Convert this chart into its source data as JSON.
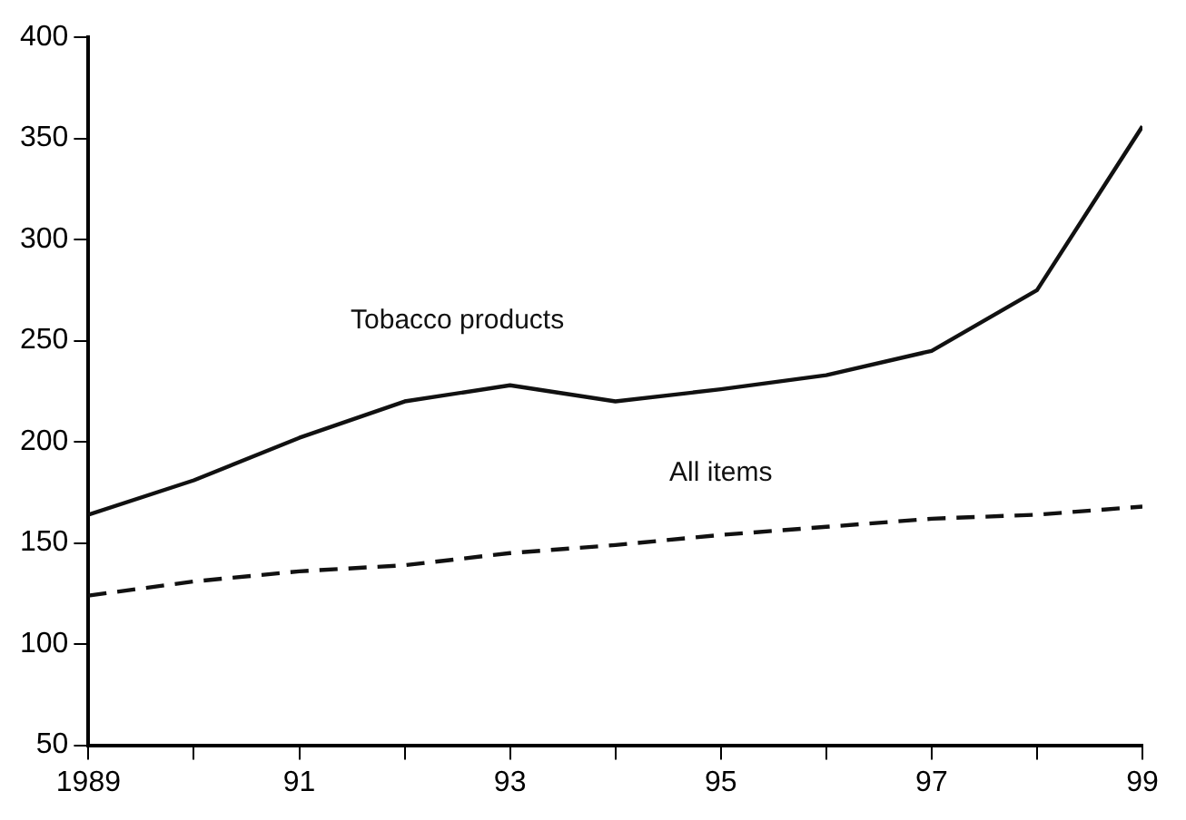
{
  "chart_data": {
    "type": "line",
    "x": [
      1989,
      1990,
      1991,
      1992,
      1993,
      1994,
      1995,
      1996,
      1997,
      1998,
      1999
    ],
    "series": [
      {
        "name": "Tobacco products",
        "color": "#111111",
        "line_style": "solid",
        "values": [
          164,
          181,
          202,
          220,
          228,
          220,
          226,
          233,
          245,
          275,
          356
        ]
      },
      {
        "name": "All items",
        "color": "#111111",
        "line_style": "dashed",
        "values": [
          124,
          131,
          136,
          139,
          145,
          149,
          154,
          158,
          162,
          164,
          168
        ]
      }
    ],
    "xlim": [
      1989,
      1999
    ],
    "xticks": [
      1989,
      {
        "value": 1990,
        "label": null
      },
      {
        "value": 1991,
        "label": "91"
      },
      {
        "value": 1992,
        "label": null
      },
      {
        "value": 1993,
        "label": "93"
      },
      {
        "value": 1994,
        "label": null
      },
      {
        "value": 1995,
        "label": "95"
      },
      {
        "value": 1996,
        "label": null
      },
      {
        "value": 1997,
        "label": "97"
      },
      {
        "value": 1998,
        "label": null
      },
      {
        "value": 1999,
        "label": "99"
      }
    ],
    "ylim": [
      50,
      400
    ],
    "yticks": [
      50,
      100,
      150,
      200,
      250,
      300,
      350,
      400
    ],
    "grid": false,
    "legend": false,
    "marker": "none"
  }
}
